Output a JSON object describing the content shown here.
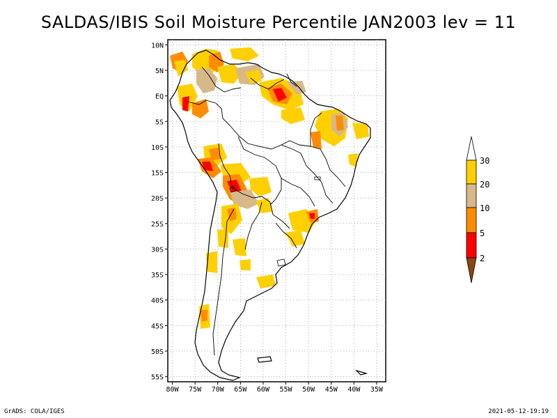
{
  "title": "SALDAS/IBIS Soil Moisture Percentile JAN2003 lev = 11",
  "footer": {
    "left": "GrADS: COLA/IGES",
    "right": "2021-05-12-19:19"
  },
  "map": {
    "lon_range": [
      -81,
      -33
    ],
    "lat_range": [
      -56,
      11
    ],
    "lon_ticks": [
      {
        "value": -80,
        "label": "80W"
      },
      {
        "value": -75,
        "label": "75W"
      },
      {
        "value": -70,
        "label": "70W"
      },
      {
        "value": -65,
        "label": "65W"
      },
      {
        "value": -60,
        "label": "60W"
      },
      {
        "value": -55,
        "label": "55W"
      },
      {
        "value": -50,
        "label": "50W"
      },
      {
        "value": -45,
        "label": "45W"
      },
      {
        "value": -40,
        "label": "40W"
      },
      {
        "value": -35,
        "label": "35W"
      }
    ],
    "lat_ticks": [
      {
        "value": 10,
        "label": "10N"
      },
      {
        "value": 5,
        "label": "5N"
      },
      {
        "value": 0,
        "label": "EQ"
      },
      {
        "value": -5,
        "label": "5S"
      },
      {
        "value": -10,
        "label": "10S"
      },
      {
        "value": -15,
        "label": "15S"
      },
      {
        "value": -20,
        "label": "20S"
      },
      {
        "value": -25,
        "label": "25S"
      },
      {
        "value": -30,
        "label": "30S"
      },
      {
        "value": -35,
        "label": "35S"
      },
      {
        "value": -40,
        "label": "40S"
      },
      {
        "value": -45,
        "label": "45S"
      },
      {
        "value": -50,
        "label": "50S"
      },
      {
        "value": -55,
        "label": "55S"
      }
    ],
    "grid": "dotted",
    "legend": {
      "placement": "right",
      "labels": [
        "30",
        "20",
        "10",
        "5",
        "2"
      ],
      "colors": [
        "#ffffff",
        "#ffd000",
        "#d7b889",
        "#ff8c00",
        "#ff0000",
        "#8b4513"
      ]
    }
  }
}
